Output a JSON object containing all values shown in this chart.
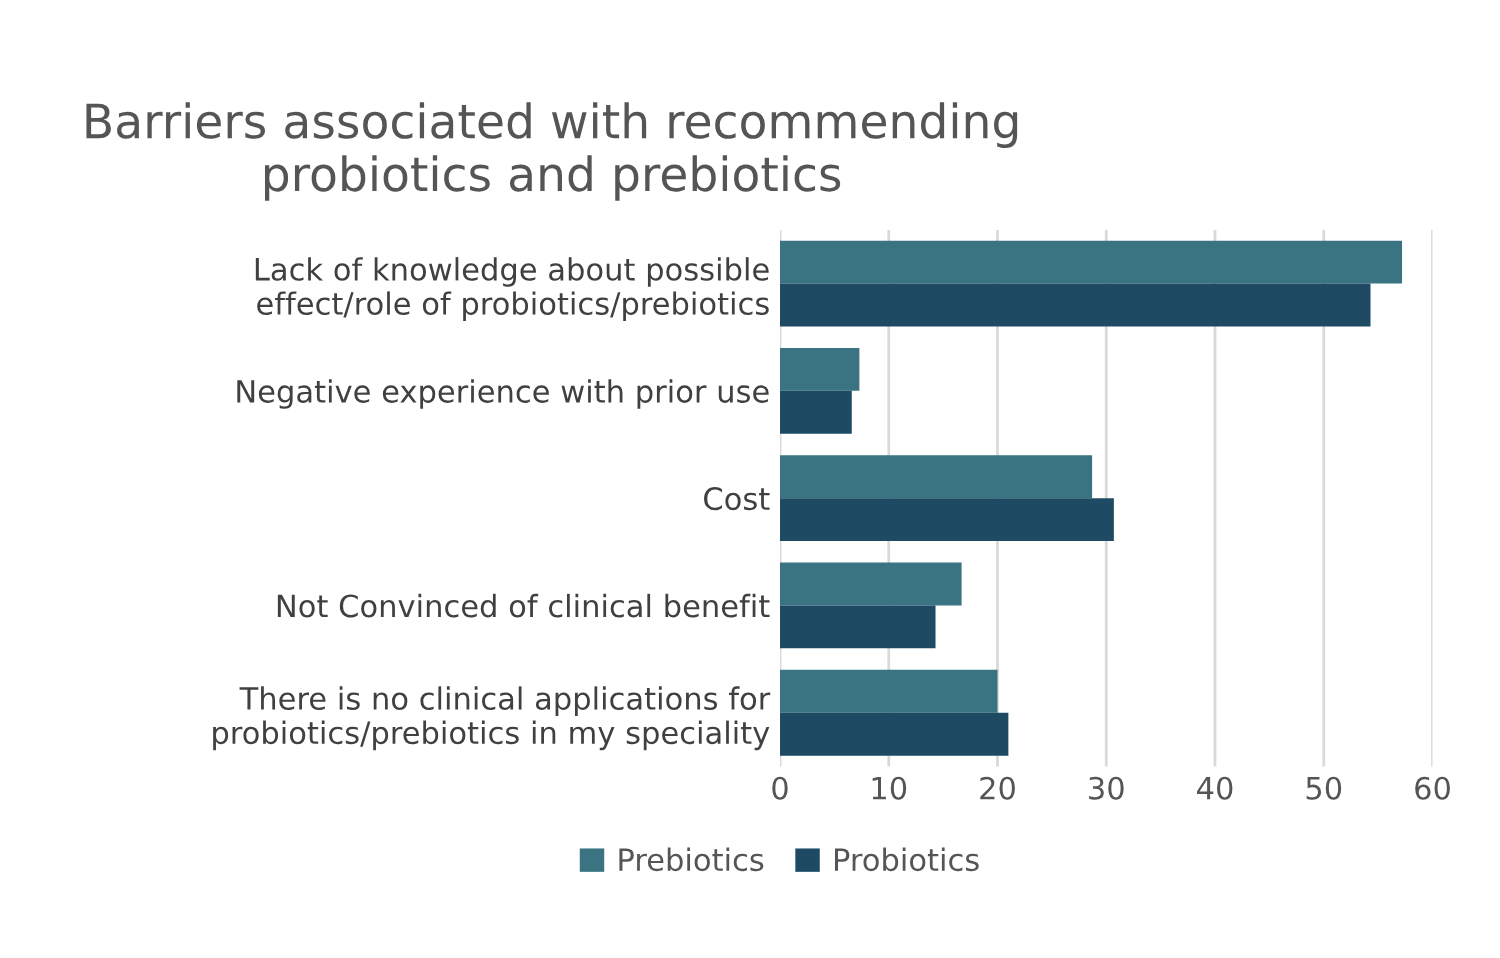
{
  "chart_data": {
    "type": "bar",
    "orientation": "horizontal",
    "title": "Barriers associated with recommending\nprobiotics and prebiotics",
    "categories": [
      "Lack of knowledge about possible\neffect/role of probiotics/prebiotics",
      "Negative experience with prior use",
      "Cost",
      "Not Convinced of clinical benefit",
      "There is no clinical applications for\nprobiotics/prebiotics in my speciality"
    ],
    "series": [
      {
        "name": "Prebiotics",
        "color": "#3a7382",
        "values": [
          57.2,
          7.3,
          28.7,
          16.7,
          20.0
        ]
      },
      {
        "name": "Probiotics",
        "color": "#1f4a64",
        "values": [
          54.3,
          6.6,
          30.7,
          14.3,
          21.0
        ]
      }
    ],
    "xlim": [
      0,
      60
    ],
    "xticks": [
      0,
      10,
      20,
      30,
      40,
      50,
      60
    ],
    "grid": "x",
    "legend": "bottom"
  }
}
